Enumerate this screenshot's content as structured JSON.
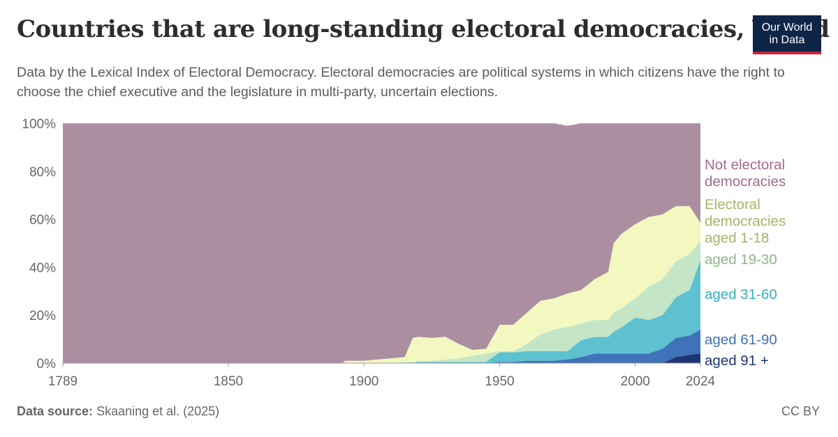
{
  "header": {
    "title": "Countries that are long-standing electoral democracies, World",
    "subtitle": "Data by the Lexical Index of Electoral Democracy. Electoral democracies are political systems in which citizens have the right to choose the chief executive and the legislature in multi-party, uncertain elections.",
    "logo_line1": "Our World",
    "logo_line2": "in Data"
  },
  "footer": {
    "source_label": "Data source:",
    "source_text": "Skaaning et al. (2025)",
    "license": "CC BY"
  },
  "colors": {
    "accent": "#d3203a",
    "logo_bg": "#0f2548"
  },
  "chart_data": {
    "type": "area",
    "stacked": true,
    "xlim": [
      1789,
      2024
    ],
    "ylim": [
      0,
      100
    ],
    "x_ticks": [
      1789,
      1850,
      1900,
      1950,
      2000,
      2024
    ],
    "y_ticks": [
      "0%",
      "20%",
      "40%",
      "60%",
      "80%",
      "100%"
    ],
    "legend_position": "right",
    "x": [
      1789,
      1892,
      1893,
      1900,
      1905,
      1910,
      1915,
      1918,
      1920,
      1925,
      1930,
      1935,
      1940,
      1945,
      1950,
      1955,
      1960,
      1965,
      1970,
      1975,
      1980,
      1985,
      1990,
      1992,
      1995,
      2000,
      2005,
      2010,
      2015,
      2020,
      2024
    ],
    "series": [
      {
        "name": "aged 91 +",
        "color": "#203574",
        "values": [
          0,
          0,
          0,
          0,
          0,
          0,
          0,
          0,
          0,
          0,
          0,
          0,
          0,
          0,
          0,
          0,
          0,
          0,
          0,
          0,
          0,
          0,
          0,
          0,
          0,
          0,
          0,
          0,
          2.5,
          3.5,
          4
        ]
      },
      {
        "name": "aged 61-90",
        "color": "#3f72b8",
        "values": [
          0,
          0,
          0,
          0,
          0,
          0,
          0,
          0,
          0,
          0,
          0,
          0,
          0,
          0,
          0.5,
          0.5,
          1,
          1,
          1,
          1.5,
          2.5,
          4,
          4,
          4,
          4,
          4,
          4,
          6,
          8,
          8,
          10
        ]
      },
      {
        "name": "aged 31-60",
        "color": "#5ec1d0",
        "values": [
          0,
          0,
          0,
          0,
          0,
          0,
          0,
          0,
          0.5,
          0.5,
          0.5,
          0.5,
          0.5,
          0.5,
          4,
          4,
          4,
          4,
          4,
          3.5,
          7,
          7,
          7,
          9,
          11,
          15,
          14,
          14,
          17,
          19,
          29
        ]
      },
      {
        "name": "aged 19-30",
        "color": "#c4e6c6",
        "values": [
          0,
          0,
          0,
          0,
          0,
          0,
          0.5,
          0.5,
          0.5,
          0.5,
          1,
          1.5,
          2.5,
          3.5,
          0.5,
          0.5,
          3,
          7,
          9,
          10,
          7,
          7,
          7,
          8,
          8,
          8,
          14,
          15,
          15,
          15,
          8
        ]
      },
      {
        "name": "aged 1-18",
        "color": "#f3f8c0",
        "values": [
          0,
          0,
          1,
          1,
          1.5,
          2,
          2,
          10,
          10,
          9.5,
          9.5,
          6,
          2.5,
          2,
          11,
          11,
          13,
          14,
          13,
          14,
          14,
          17,
          20,
          29,
          31,
          31,
          29,
          27,
          23,
          20,
          7.5
        ]
      },
      {
        "name": "Not electoral democracies",
        "color": "#ab8fa1",
        "values": [
          100,
          100,
          99,
          99,
          98.5,
          98,
          97.5,
          89.5,
          89,
          89.5,
          89,
          92,
          94.5,
          94,
          84,
          84,
          79,
          74,
          73,
          70,
          69.5,
          65,
          62,
          50,
          46,
          42,
          39,
          38,
          34.5,
          34.5,
          41.5
        ]
      }
    ],
    "labels": [
      {
        "text": "Not electoral",
        "color": "#a26b8f"
      },
      {
        "text": "democracies",
        "color": "#a26b8f"
      },
      {
        "text": "Electoral",
        "color": "#a3b56a"
      },
      {
        "text": "democracies",
        "color": "#a3b56a"
      },
      {
        "text": "aged 1-18",
        "color": "#a3b56a"
      },
      {
        "text": "aged 19-30",
        "color": "#8cba84"
      },
      {
        "text": "aged 31-60",
        "color": "#3aaebc"
      },
      {
        "text": "aged 61-90",
        "color": "#3f72b8"
      },
      {
        "text": "aged 91 +",
        "color": "#203574"
      }
    ]
  }
}
